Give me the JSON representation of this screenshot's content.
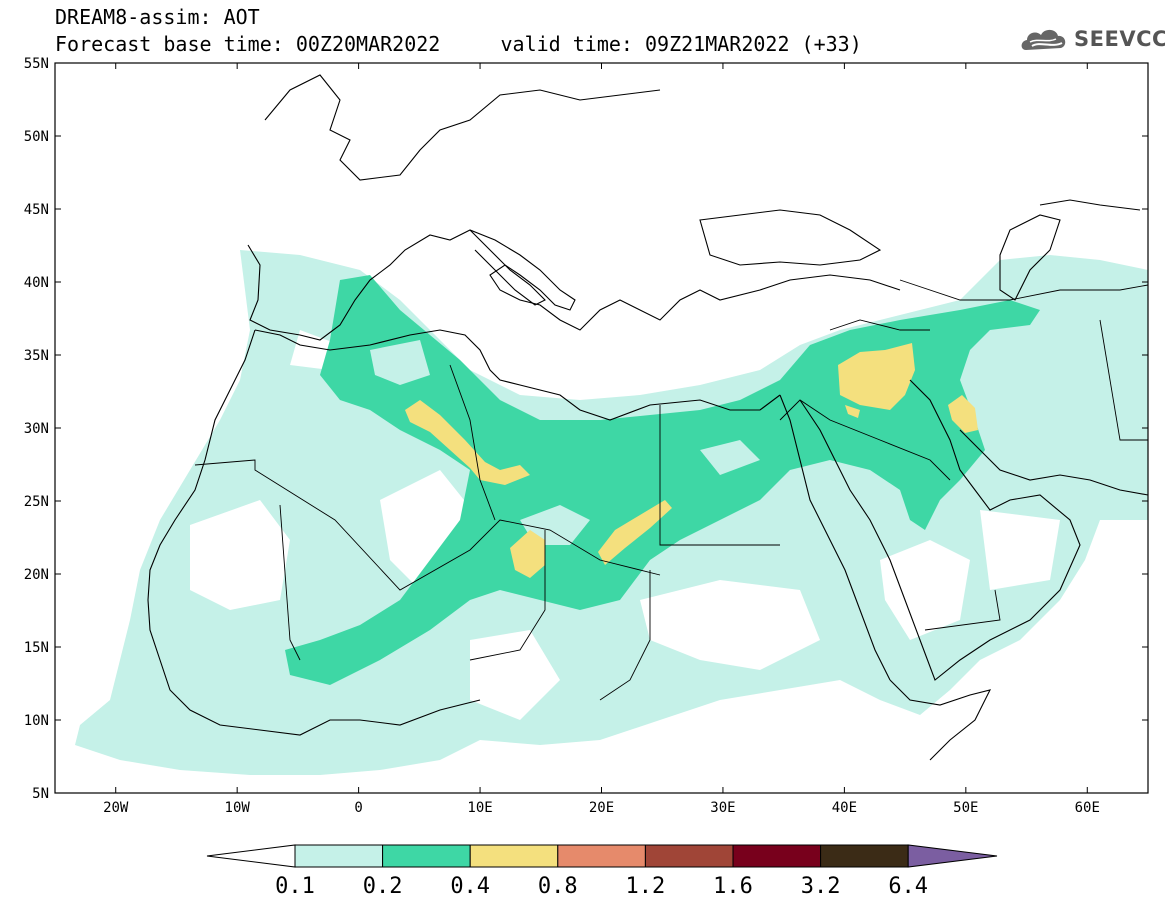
{
  "header": {
    "title_line1": "DREAM8-assim: AOT",
    "title_line2": "Forecast base time: 00Z20MAR2022     valid time: 09Z21MAR2022 (+33)"
  },
  "logo": {
    "text": "SEEVCCC",
    "icon": "cloud-icon"
  },
  "map": {
    "lat_labels": [
      "55N",
      "50N",
      "45N",
      "40N",
      "35N",
      "30N",
      "25N",
      "20N",
      "15N",
      "10N",
      "5N"
    ],
    "lat_values": [
      55,
      50,
      45,
      40,
      35,
      30,
      25,
      20,
      15,
      10,
      5
    ],
    "lon_labels": [
      "20W",
      "10W",
      "0",
      "10E",
      "20E",
      "30E",
      "40E",
      "50E",
      "60E"
    ],
    "lon_values": [
      -20,
      -10,
      0,
      10,
      20,
      30,
      40,
      50,
      60
    ],
    "lon_range": [
      -25,
      65
    ],
    "lat_range": [
      5,
      55
    ],
    "field": "AOT",
    "colors": {
      "low": "#c5f1e8",
      "mid": "#3ed7a5",
      "high": "#f4e07e"
    }
  },
  "colorbar": {
    "labels": [
      "0.1",
      "0.2",
      "0.4",
      "0.8",
      "1.2",
      "1.6",
      "3.2",
      "6.4"
    ],
    "colors": [
      "#ffffff",
      "#c5f1e8",
      "#3ed7a5",
      "#f4e07e",
      "#e68a6b",
      "#a04537",
      "#78001c",
      "#3b2b16",
      "#7b5ea1"
    ]
  }
}
